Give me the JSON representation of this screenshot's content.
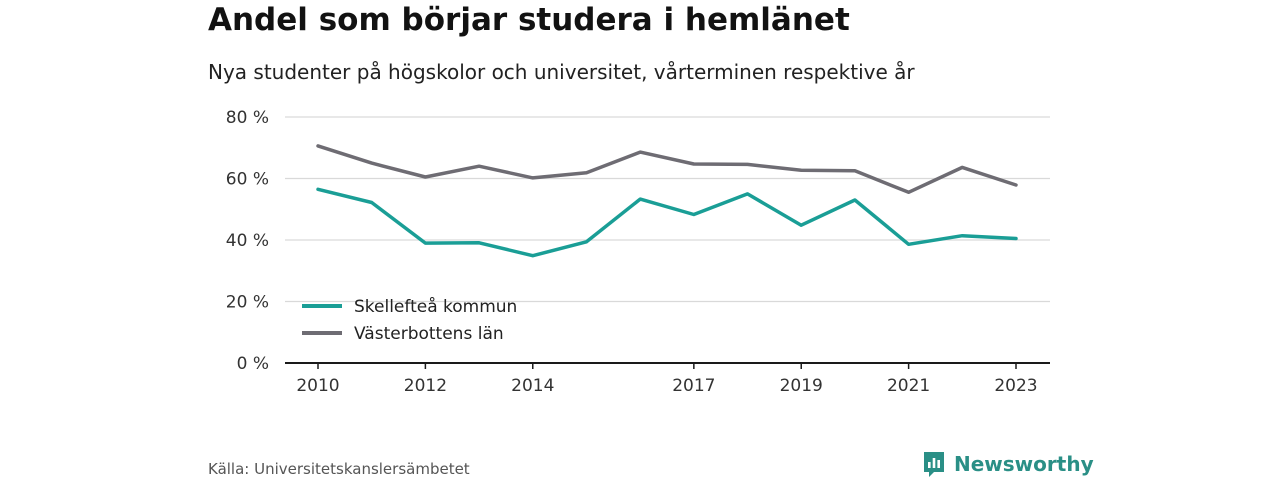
{
  "title": "Andel som börjar studera i hemlänet",
  "subtitle": "Nya studenter på högskolor och universitet, vårterminen respektive år",
  "source": "Källa: Universitetskanslersämbetet",
  "brand": {
    "name": "Newsworthy",
    "color": "#2a9d8f"
  },
  "chart_data": {
    "type": "line",
    "x": [
      2010,
      2011,
      2012,
      2013,
      2014,
      2015,
      2016,
      2017,
      2018,
      2019,
      2020,
      2021,
      2022,
      2023
    ],
    "x_tick_labels": [
      "2010",
      "2012",
      "2014",
      "2017",
      "2019",
      "2021",
      "2023"
    ],
    "y_tick_labels": [
      "0 %",
      "20 %",
      "40 %",
      "60 %",
      "80 %"
    ],
    "y_ticks": [
      0,
      20,
      40,
      60,
      80
    ],
    "ylim": [
      0,
      80
    ],
    "xlim": [
      2010,
      2023
    ],
    "grid": true,
    "legend_position": "bottom-left",
    "series": [
      {
        "name": "Skellefteå kommun",
        "color": "#1a9e96",
        "values": [
          56.5,
          52.2,
          39.0,
          39.1,
          34.9,
          39.4,
          53.3,
          48.3,
          55.0,
          44.8,
          53.0,
          38.6,
          41.4,
          40.5
        ]
      },
      {
        "name": "Västerbottens län",
        "color": "#6e6c73",
        "values": [
          70.6,
          65.0,
          60.5,
          64.0,
          60.2,
          61.9,
          68.6,
          64.7,
          64.6,
          62.7,
          62.5,
          55.5,
          63.6,
          57.9
        ]
      }
    ]
  }
}
